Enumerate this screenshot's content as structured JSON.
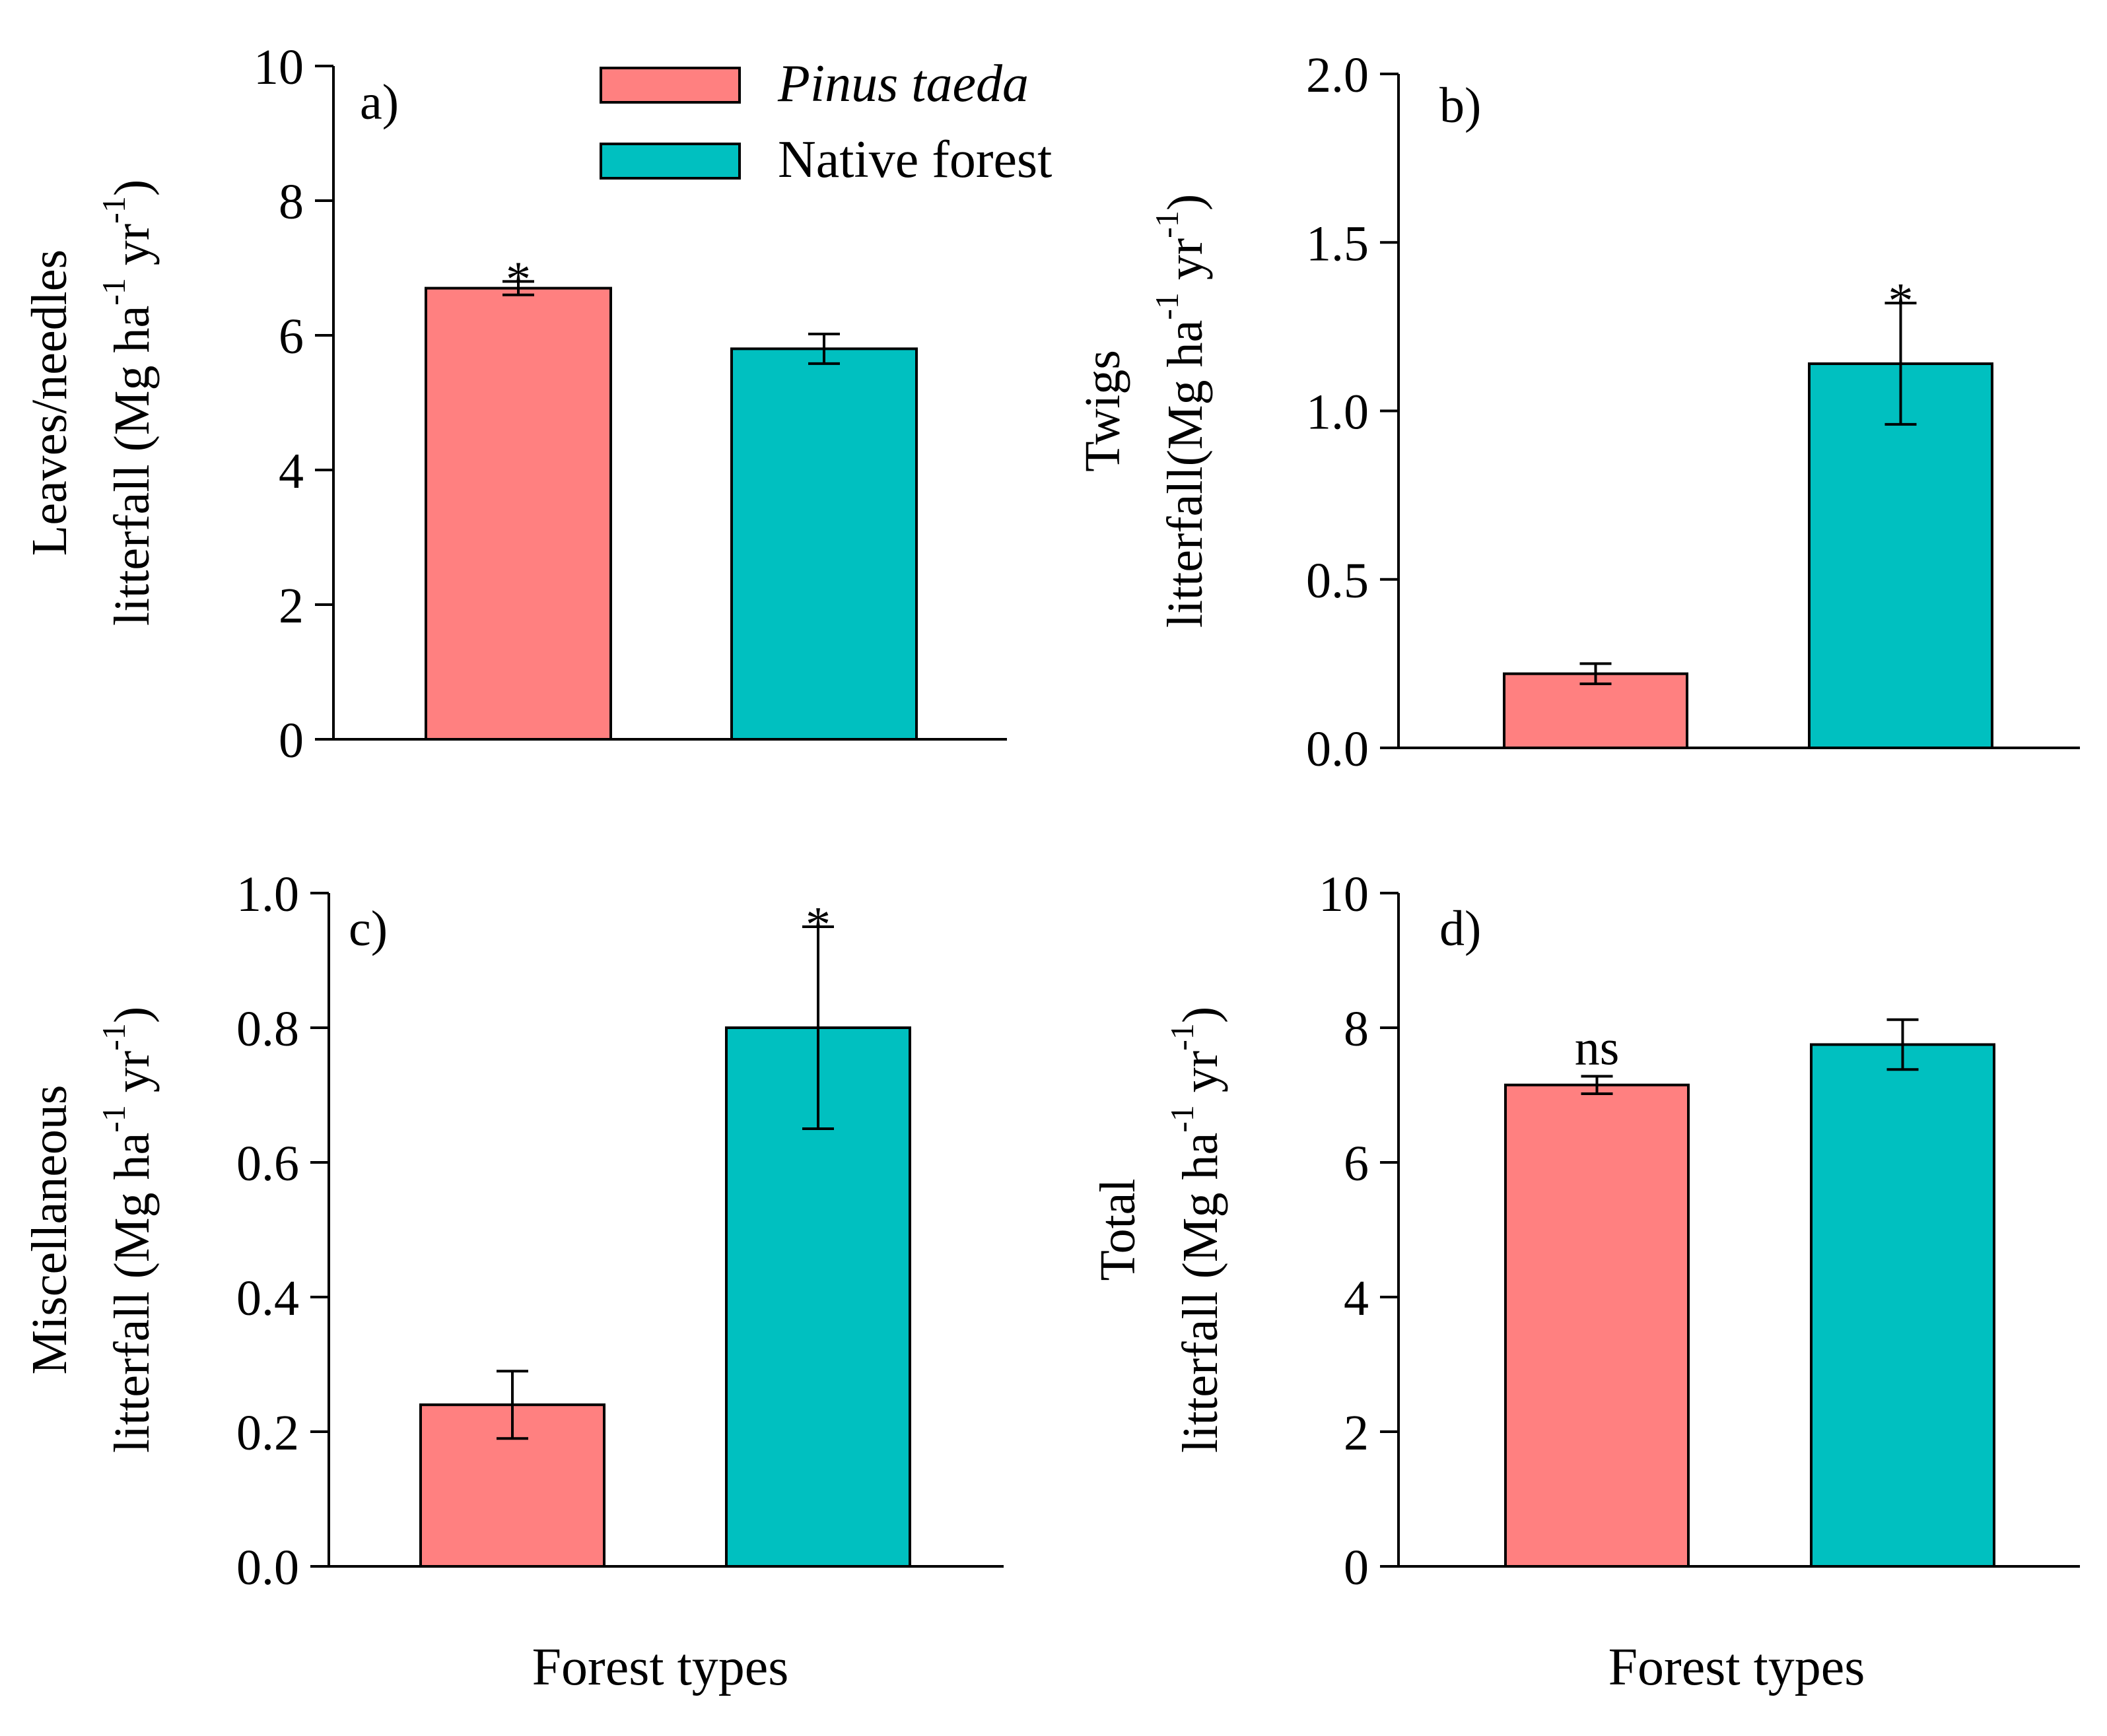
{
  "colors": {
    "pinus": "#FF8080",
    "native": "#00C0C0"
  },
  "legend": [
    {
      "label": "Pinus taeda",
      "italic": true,
      "color": "#FF8080"
    },
    {
      "label": "Native forest",
      "italic": false,
      "color": "#00C0C0"
    }
  ],
  "chart_data": [
    {
      "type": "bar",
      "panel": "a)",
      "categories": [
        "Pinus taeda",
        "Native forest"
      ],
      "values": [
        6.7,
        5.8
      ],
      "errors": [
        0.1,
        0.22
      ],
      "significance": [
        "*",
        ""
      ],
      "ylabel_line1": "Leaves/needles",
      "ylabel_line2": "litterfall (Mg ha",
      "ylabel_unit_tail": " yr",
      "ylabel_close": ")",
      "sup": "-1",
      "xlabel": "",
      "ylim": [
        0,
        10
      ],
      "yticks": [
        "0",
        "2",
        "4",
        "6",
        "8",
        "10"
      ]
    },
    {
      "type": "bar",
      "panel": "b)",
      "categories": [
        "Pinus taeda",
        "Native forest"
      ],
      "values": [
        0.22,
        1.14
      ],
      "errors": [
        0.03,
        0.18
      ],
      "significance": [
        "",
        "*"
      ],
      "ylabel_line1": "Twigs",
      "ylabel_line2": "litterfall(Mg ha",
      "ylabel_unit_tail": " yr",
      "ylabel_close": ")",
      "sup": "-1",
      "xlabel": "",
      "ylim": [
        0,
        2.0
      ],
      "yticks": [
        "0.0",
        "0.5",
        "1.0",
        "1.5",
        "2.0"
      ]
    },
    {
      "type": "bar",
      "panel": "c)",
      "categories": [
        "Pinus taeda",
        "Native forest"
      ],
      "values": [
        0.24,
        0.8
      ],
      "errors": [
        0.05,
        0.15
      ],
      "significance": [
        "",
        "*"
      ],
      "ylabel_line1": "Miscellaneous",
      "ylabel_line2": "litterfall (Mg ha",
      "ylabel_unit_tail": " yr",
      "ylabel_close": ")",
      "sup": "-1",
      "xlabel": "Forest types",
      "ylim": [
        0,
        1.0
      ],
      "yticks": [
        "0.0",
        "0.2",
        "0.4",
        "0.6",
        "0.8",
        "1.0"
      ]
    },
    {
      "type": "bar",
      "panel": "d)",
      "categories": [
        "Pinus taeda",
        "Native forest"
      ],
      "values": [
        7.15,
        7.75
      ],
      "errors": [
        0.13,
        0.37
      ],
      "significance": [
        "ns",
        ""
      ],
      "ylabel_line1": "Total",
      "ylabel_line2": "litterfall (Mg ha",
      "ylabel_unit_tail": " yr",
      "ylabel_close": ")",
      "sup": "-1",
      "xlabel": "Forest types",
      "ylim": [
        0,
        10
      ],
      "yticks": [
        "0",
        "2",
        "4",
        "6",
        "8",
        "10"
      ]
    }
  ]
}
